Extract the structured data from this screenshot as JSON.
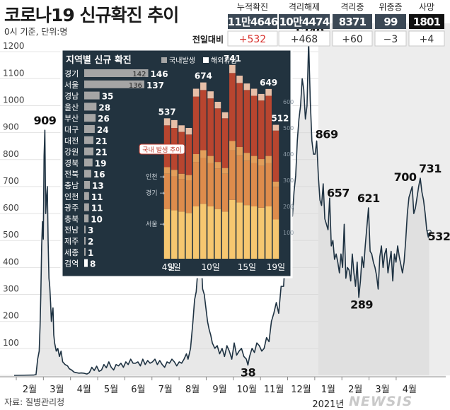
{
  "header": {
    "title": "코로나19 신규확진 추이",
    "subtitle": "0시 기준, 단위:명",
    "source": "자료: 질병관리청",
    "watermark": "NEWSIS"
  },
  "stats": {
    "row_label": "전일대비",
    "items": [
      {
        "label": "누적확진",
        "value": "11만4646",
        "change": "+532",
        "change_color": "#d8322e"
      },
      {
        "label": "격리해제",
        "value": "10만4474",
        "change": "+468",
        "change_color": "#333333"
      },
      {
        "label": "격리중",
        "value": "8371",
        "change": "+60",
        "change_color": "#333333"
      },
      {
        "label": "위중증",
        "value": "99",
        "change": "−3",
        "change_color": "#333333"
      },
      {
        "label": "사망",
        "value": "1801",
        "change": "+4",
        "change_color": "#333333"
      }
    ]
  },
  "colors": {
    "main_line": "#1e3242",
    "area_fill": "#d6d6d6",
    "inset_bg": "#22333f",
    "region_bar": "#a5a5a5",
    "highlight_bar": "#ffffff",
    "stack_light": "#f6c770",
    "stack_mid": "#de8c4c",
    "stack_dark": "#b8452f",
    "overseas": "#e7bfa8",
    "stats_dark": "#3b4855",
    "stats_black": "#111111"
  },
  "chart_data": [
    {
      "type": "line",
      "title": "",
      "xlabel": "",
      "ylabel": "",
      "x_ticks": [
        "2월",
        "3월",
        "4월",
        "5월",
        "6월",
        "7월",
        "8월",
        "9월",
        "10월",
        "11월",
        "12월",
        "1월",
        "2월",
        "3월",
        "4월"
      ],
      "year_label": "2021년",
      "ylim": [
        0,
        1300
      ],
      "y_ticks": [
        0,
        100,
        200,
        300,
        400,
        500,
        600,
        700,
        800,
        900,
        1000,
        1100,
        1200
      ],
      "grid": true,
      "area_from": "1월",
      "points": [
        [
          0,
          0
        ],
        [
          24,
          1
        ],
        [
          27,
          3
        ],
        [
          28,
          30
        ],
        [
          29,
          60
        ],
        [
          31,
          90
        ],
        [
          32,
          180
        ],
        [
          33,
          300
        ],
        [
          34,
          480
        ],
        [
          35,
          570
        ],
        [
          36,
          505
        ],
        [
          37,
          813
        ],
        [
          38,
          909
        ],
        [
          39,
          600
        ],
        [
          40,
          660
        ],
        [
          41,
          700
        ],
        [
          42,
          500
        ],
        [
          43,
          360
        ],
        [
          44,
          330
        ],
        [
          45,
          270
        ],
        [
          46,
          200
        ],
        [
          47,
          230
        ],
        [
          48,
          250
        ],
        [
          49,
          150
        ],
        [
          50,
          120
        ],
        [
          52,
          90
        ],
        [
          54,
          100
        ],
        [
          56,
          70
        ],
        [
          58,
          90
        ],
        [
          60,
          50
        ],
        [
          63,
          40
        ],
        [
          66,
          35
        ],
        [
          68,
          25
        ],
        [
          71,
          20
        ],
        [
          74,
          12
        ],
        [
          77,
          10
        ],
        [
          80,
          8
        ],
        [
          83,
          9
        ],
        [
          86,
          8
        ],
        [
          90,
          5
        ],
        [
          93,
          10
        ],
        [
          96,
          30
        ],
        [
          99,
          18
        ],
        [
          102,
          34
        ],
        [
          105,
          15
        ],
        [
          108,
          20
        ],
        [
          111,
          40
        ],
        [
          114,
          28
        ],
        [
          117,
          50
        ],
        [
          120,
          30
        ],
        [
          123,
          20
        ],
        [
          126,
          40
        ],
        [
          129,
          35
        ],
        [
          132,
          45
        ],
        [
          135,
          30
        ],
        [
          138,
          50
        ],
        [
          141,
          40
        ],
        [
          144,
          60
        ],
        [
          147,
          45
        ],
        [
          150,
          45
        ],
        [
          153,
          50
        ],
        [
          156,
          35
        ],
        [
          159,
          60
        ],
        [
          162,
          40
        ],
        [
          165,
          55
        ],
        [
          168,
          45
        ],
        [
          171,
          50
        ],
        [
          174,
          60
        ],
        [
          177,
          40
        ],
        [
          180,
          55
        ],
        [
          183,
          40
        ],
        [
          186,
          30
        ],
        [
          189,
          50
        ],
        [
          192,
          45
        ],
        [
          195,
          60
        ],
        [
          198,
          50
        ],
        [
          201,
          35
        ],
        [
          204,
          50
        ],
        [
          207,
          45
        ],
        [
          210,
          60
        ],
        [
          213,
          80
        ],
        [
          215,
          60
        ],
        [
          218,
          100
        ],
        [
          221,
          200
        ],
        [
          223,
          280
        ],
        [
          225,
          310
        ],
        [
          227,
          390
        ],
        [
          229,
          400
        ],
        [
          231,
          441
        ],
        [
          233,
          320
        ],
        [
          235,
          300
        ],
        [
          237,
          250
        ],
        [
          239,
          200
        ],
        [
          241,
          170
        ],
        [
          243,
          150
        ],
        [
          245,
          120
        ],
        [
          248,
          100
        ],
        [
          251,
          110
        ],
        [
          254,
          80
        ],
        [
          257,
          100
        ],
        [
          260,
          70
        ],
        [
          263,
          110
        ],
        [
          266,
          90
        ],
        [
          269,
          60
        ],
        [
          272,
          120
        ],
        [
          275,
          75
        ],
        [
          278,
          90
        ],
        [
          281,
          100
        ],
        [
          284,
          70
        ],
        [
          287,
          60
        ],
        [
          289,
          38
        ],
        [
          291,
          70
        ],
        [
          294,
          100
        ],
        [
          297,
          85
        ],
        [
          300,
          120
        ],
        [
          303,
          110
        ],
        [
          306,
          90
        ],
        [
          309,
          100
        ],
        [
          312,
          140
        ],
        [
          315,
          125
        ],
        [
          318,
          200
        ],
        [
          321,
          230
        ],
        [
          324,
          270
        ],
        [
          327,
          230
        ],
        [
          330,
          330
        ],
        [
          333,
          330
        ],
        [
          336,
          480
        ],
        [
          338,
          560
        ],
        [
          340,
          580
        ],
        [
          342,
          630
        ],
        [
          344,
          590
        ],
        [
          346,
          682
        ],
        [
          348,
          740
        ],
        [
          350,
          870
        ],
        [
          352,
          950
        ],
        [
          354,
          1000
        ],
        [
          356,
          1100
        ],
        [
          358,
          1060
        ],
        [
          360,
          950
        ],
        [
          362,
          1000
        ],
        [
          364,
          1240
        ],
        [
          366,
          1020
        ],
        [
          368,
          870
        ],
        [
          370,
          820
        ],
        [
          372,
          820
        ],
        [
          374,
          869
        ],
        [
          376,
          740
        ],
        [
          378,
          650
        ],
        [
          380,
          630
        ],
        [
          382,
          710
        ],
        [
          384,
          580
        ],
        [
          386,
          560
        ],
        [
          388,
          540
        ],
        [
          390,
          657
        ],
        [
          392,
          480
        ],
        [
          394,
          500
        ],
        [
          396,
          430
        ],
        [
          398,
          450
        ],
        [
          400,
          420
        ],
        [
          402,
          380
        ],
        [
          404,
          450
        ],
        [
          406,
          400
        ],
        [
          408,
          560
        ],
        [
          410,
          360
        ],
        [
          412,
          400
        ],
        [
          414,
          390
        ],
        [
          416,
          350
        ],
        [
          418,
          450
        ],
        [
          420,
          380
        ],
        [
          422,
          330
        ],
        [
          424,
          420
        ],
        [
          426,
          289
        ],
        [
          428,
          350
        ],
        [
          430,
          440
        ],
        [
          432,
          400
        ],
        [
          434,
          480
        ],
        [
          436,
          550
        ],
        [
          438,
          621
        ],
        [
          440,
          460
        ],
        [
          442,
          450
        ],
        [
          444,
          420
        ],
        [
          446,
          400
        ],
        [
          448,
          370
        ],
        [
          450,
          320
        ],
        [
          452,
          440
        ],
        [
          454,
          480
        ],
        [
          456,
          400
        ],
        [
          458,
          450
        ],
        [
          460,
          470
        ],
        [
          462,
          380
        ],
        [
          464,
          420
        ],
        [
          466,
          460
        ],
        [
          468,
          350
        ],
        [
          470,
          450
        ],
        [
          472,
          420
        ],
        [
          474,
          480
        ],
        [
          476,
          440
        ],
        [
          478,
          410
        ],
        [
          480,
          380
        ],
        [
          482,
          420
        ],
        [
          484,
          500
        ],
        [
          486,
          600
        ],
        [
          488,
          660
        ],
        [
          490,
          680
        ],
        [
          492,
          700
        ],
        [
          494,
          600
        ],
        [
          496,
          620
        ],
        [
          498,
          660
        ],
        [
          500,
          700
        ],
        [
          502,
          731
        ],
        [
          504,
          680
        ],
        [
          506,
          650
        ],
        [
          508,
          600
        ],
        [
          510,
          540
        ],
        [
          512,
          512
        ],
        [
          513,
          532
        ]
      ],
      "annotations": [
        {
          "label": "909",
          "x": 38,
          "y": 909
        },
        {
          "label": "38",
          "x": 289,
          "y": 38
        },
        {
          "label": "1240",
          "x": 364,
          "y": 1240
        },
        {
          "label": "869",
          "x": 374,
          "y": 869
        },
        {
          "label": "657",
          "x": 390,
          "y": 657
        },
        {
          "label": "289",
          "x": 426,
          "y": 289
        },
        {
          "label": "621",
          "x": 438,
          "y": 621
        },
        {
          "label": "700",
          "x": 492,
          "y": 700
        },
        {
          "label": "731",
          "x": 502,
          "y": 731
        },
        {
          "label": "532",
          "x": 513,
          "y": 532
        }
      ]
    },
    {
      "type": "bar",
      "title": "지역별 신규 확진",
      "legend": [
        "국내발생",
        "해외유입"
      ],
      "categories": [
        "경기",
        "서울",
        "경남",
        "울산",
        "부산",
        "대구",
        "대전",
        "강원",
        "경북",
        "전북",
        "충남",
        "인천",
        "광주",
        "충북",
        "전남",
        "제주",
        "세종",
        "검역"
      ],
      "values": [
        146,
        137,
        35,
        28,
        26,
        24,
        21,
        21,
        19,
        16,
        13,
        11,
        11,
        10,
        3,
        2,
        1,
        8
      ],
      "inbar_labels": {
        "경기": 142,
        "서울": 136
      }
    },
    {
      "type": "bar",
      "stacked": true,
      "title": "",
      "x_ticks": [
        "4일",
        "5일",
        "10일",
        "15일",
        "19일"
      ],
      "ylim": [
        0,
        700
      ],
      "y_ticks": [
        100,
        200,
        300,
        400,
        500,
        600
      ],
      "note": "국내 발생 추이",
      "segment_labels": [
        "서울",
        "경기",
        "인천"
      ],
      "days": [
        4,
        5,
        6,
        7,
        8,
        9,
        10,
        11,
        12,
        13,
        14,
        15,
        16,
        17,
        18,
        19
      ],
      "totals": [
        537,
        530,
        510,
        500,
        650,
        674,
        640,
        600,
        560,
        741,
        700,
        670,
        650,
        630,
        649,
        512
      ],
      "series": [
        {
          "name": "서울",
          "values": [
            190,
            185,
            180,
            175,
            200,
            210,
            200,
            190,
            180,
            225,
            215,
            205,
            200,
            195,
            200,
            150
          ]
        },
        {
          "name": "경기",
          "values": [
            135,
            130,
            125,
            125,
            170,
            175,
            165,
            155,
            145,
            190,
            180,
            170,
            165,
            160,
            165,
            125
          ]
        },
        {
          "name": "인천",
          "values": [
            25,
            25,
            20,
            20,
            30,
            30,
            28,
            25,
            22,
            35,
            32,
            30,
            28,
            26,
            28,
            20
          ]
        },
        {
          "name": "",
          "values": [
            160,
            160,
            160,
            155,
            220,
            230,
            220,
            205,
            190,
            260,
            245,
            240,
            230,
            224,
            230,
            195
          ]
        },
        {
          "name": "해외유입",
          "values": [
            27,
            30,
            25,
            25,
            30,
            29,
            27,
            25,
            23,
            31,
            28,
            25,
            27,
            25,
            26,
            22
          ]
        }
      ]
    }
  ]
}
